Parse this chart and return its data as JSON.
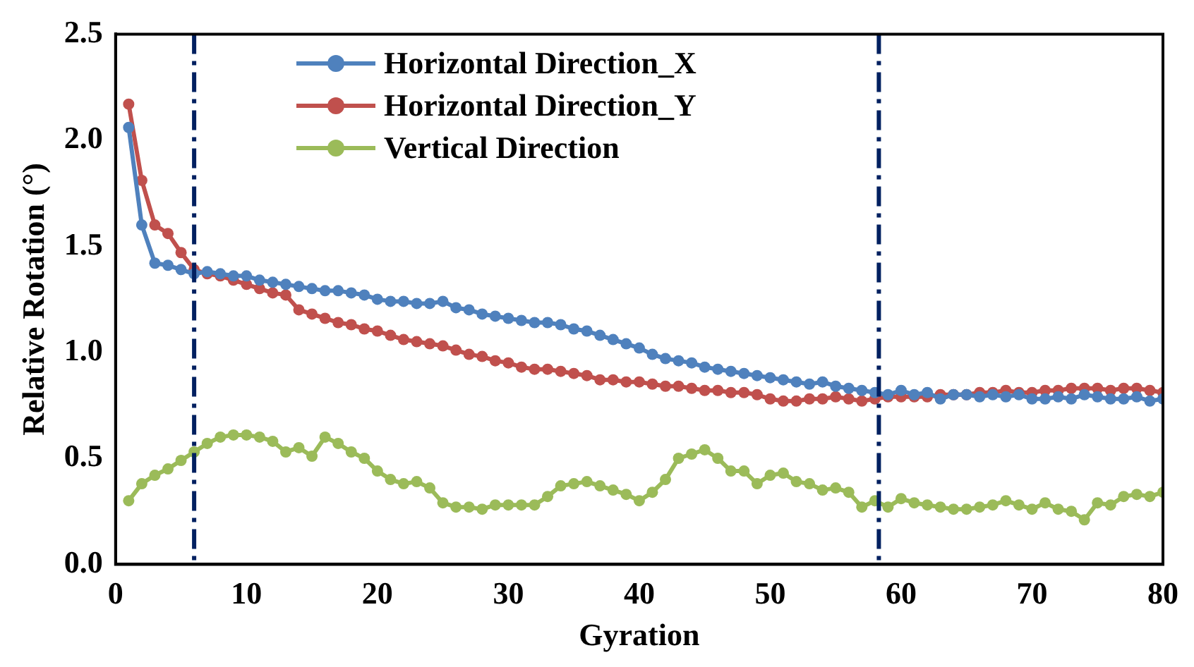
{
  "chart_data": {
    "type": "line",
    "xlabel": "Gyration",
    "ylabel": "Relative Rotation (°)",
    "x": [
      1,
      2,
      3,
      4,
      5,
      6,
      7,
      8,
      9,
      10,
      11,
      12,
      13,
      14,
      15,
      16,
      17,
      18,
      19,
      20,
      21,
      22,
      23,
      24,
      25,
      26,
      27,
      28,
      29,
      30,
      31,
      32,
      33,
      34,
      35,
      36,
      37,
      38,
      39,
      40,
      41,
      42,
      43,
      44,
      45,
      46,
      47,
      48,
      49,
      50,
      51,
      52,
      53,
      54,
      55,
      56,
      57,
      58,
      59,
      60,
      61,
      62,
      63,
      64,
      65,
      66,
      67,
      68,
      69,
      70,
      71,
      72,
      73,
      74,
      75,
      76,
      77,
      78,
      79,
      80
    ],
    "series": [
      {
        "name": "Horizontal Direction_X",
        "color": "#4f81bd",
        "values": [
          2.06,
          1.6,
          1.42,
          1.41,
          1.39,
          1.37,
          1.38,
          1.37,
          1.36,
          1.36,
          1.34,
          1.33,
          1.32,
          1.31,
          1.3,
          1.29,
          1.29,
          1.28,
          1.27,
          1.25,
          1.24,
          1.24,
          1.23,
          1.23,
          1.24,
          1.21,
          1.2,
          1.18,
          1.17,
          1.16,
          1.15,
          1.14,
          1.14,
          1.13,
          1.11,
          1.1,
          1.08,
          1.06,
          1.04,
          1.02,
          0.99,
          0.97,
          0.96,
          0.95,
          0.93,
          0.92,
          0.91,
          0.9,
          0.89,
          0.88,
          0.87,
          0.86,
          0.85,
          0.86,
          0.84,
          0.83,
          0.82,
          0.81,
          0.8,
          0.82,
          0.8,
          0.81,
          0.78,
          0.8,
          0.8,
          0.79,
          0.8,
          0.79,
          0.8,
          0.78,
          0.78,
          0.79,
          0.78,
          0.8,
          0.79,
          0.78,
          0.78,
          0.79,
          0.77,
          0.78
        ]
      },
      {
        "name": "Horizontal Direction_Y",
        "color": "#c0504d",
        "values": [
          2.17,
          1.81,
          1.6,
          1.56,
          1.47,
          1.39,
          1.37,
          1.36,
          1.34,
          1.32,
          1.3,
          1.28,
          1.27,
          1.2,
          1.18,
          1.16,
          1.14,
          1.13,
          1.11,
          1.1,
          1.08,
          1.06,
          1.05,
          1.04,
          1.03,
          1.01,
          0.99,
          0.98,
          0.96,
          0.95,
          0.93,
          0.92,
          0.92,
          0.91,
          0.9,
          0.89,
          0.87,
          0.87,
          0.86,
          0.86,
          0.85,
          0.84,
          0.84,
          0.83,
          0.82,
          0.82,
          0.81,
          0.81,
          0.8,
          0.78,
          0.77,
          0.77,
          0.78,
          0.78,
          0.79,
          0.78,
          0.77,
          0.78,
          0.79,
          0.79,
          0.79,
          0.79,
          0.8,
          0.8,
          0.8,
          0.81,
          0.81,
          0.82,
          0.81,
          0.81,
          0.82,
          0.82,
          0.83,
          0.83,
          0.83,
          0.82,
          0.83,
          0.83,
          0.82,
          0.81
        ]
      },
      {
        "name": "Vertical Direction",
        "color": "#9bbb59",
        "values": [
          0.3,
          0.38,
          0.42,
          0.45,
          0.49,
          0.53,
          0.57,
          0.6,
          0.61,
          0.61,
          0.6,
          0.58,
          0.53,
          0.55,
          0.51,
          0.6,
          0.57,
          0.53,
          0.5,
          0.44,
          0.4,
          0.38,
          0.39,
          0.36,
          0.29,
          0.27,
          0.27,
          0.26,
          0.28,
          0.28,
          0.28,
          0.28,
          0.32,
          0.37,
          0.38,
          0.39,
          0.37,
          0.35,
          0.33,
          0.3,
          0.34,
          0.4,
          0.5,
          0.52,
          0.54,
          0.5,
          0.44,
          0.44,
          0.38,
          0.42,
          0.43,
          0.39,
          0.38,
          0.35,
          0.36,
          0.34,
          0.27,
          0.3,
          0.27,
          0.31,
          0.29,
          0.28,
          0.27,
          0.26,
          0.26,
          0.27,
          0.28,
          0.3,
          0.28,
          0.26,
          0.29,
          0.26,
          0.25,
          0.21,
          0.29,
          0.28,
          0.32,
          0.33,
          0.32,
          0.34
        ]
      }
    ],
    "xlim": [
      0,
      80
    ],
    "xticks": [
      0,
      10,
      20,
      30,
      40,
      50,
      60,
      70,
      80
    ],
    "ylim": [
      0,
      2.5
    ],
    "yticks": [
      {
        "value": 0,
        "label": "0.0"
      },
      0.5,
      {
        "value": 1,
        "label": "1.0"
      },
      1.5,
      {
        "value": 2,
        "label": "2.0"
      },
      2.5
    ],
    "ref_lines": [
      {
        "axis": "x",
        "value": 6,
        "color": "#002060",
        "line_style": "dashdot"
      },
      {
        "axis": "x",
        "value": 58.3,
        "color": "#002060",
        "line_style": "dashdot"
      }
    ],
    "marker": "circle",
    "line_style": "solid",
    "grid": false,
    "legend": "top"
  }
}
